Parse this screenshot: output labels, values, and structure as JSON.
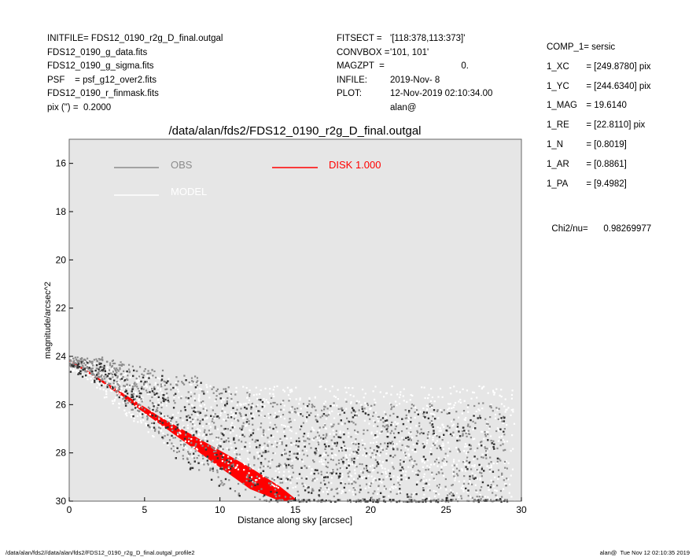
{
  "header_left": [
    {
      "key": "INITFILE= ",
      "value": "FDS12_0190_r2g_D_final.outgal"
    },
    {
      "key": "",
      "value": "FDS12_0190_g_data.fits"
    },
    {
      "key": "",
      "value": "FDS12_0190_g_sigma.fits"
    },
    {
      "key": "PSF    = ",
      "value": "psf_g12_over2.fits"
    },
    {
      "key": "",
      "value": "FDS12_0190_r_finmask.fits"
    },
    {
      "key": "pix (\") =  ",
      "value": "0.2000"
    }
  ],
  "header_mid": [
    {
      "key": "FITSECT = ",
      "value": "'[118:378,113:373]'"
    },
    {
      "key": "CONVBOX = ",
      "value": "'101, 101'"
    },
    {
      "key": "MAGZPT  =",
      "value": "0."
    },
    {
      "key": "INFILE: ",
      "value": "2019-Nov- 8"
    },
    {
      "key": "PLOT: ",
      "value": "12-Nov-2019 02:10:34.00"
    },
    {
      "key": "",
      "value": "alan@"
    }
  ],
  "params": [
    {
      "key": "COMP_1",
      "value": " = sersic"
    },
    {
      "key": "1_XC",
      "value": "  = [249.8780] pix"
    },
    {
      "key": "1_YC",
      "value": "  = [244.6340] pix"
    },
    {
      "key": "1_MAG",
      "value": "  = 19.6140"
    },
    {
      "key": "1_RE",
      "value": "  = [22.8110] pix"
    },
    {
      "key": "1_N",
      "value": "  = [0.8019]"
    },
    {
      "key": "1_AR",
      "value": "  = [0.8861]"
    },
    {
      "key": "1_PA",
      "value": "  = [9.4982]"
    }
  ],
  "chi2": {
    "key": "Chi2/nu=",
    "value": "0.98269977"
  },
  "footer_left": "/data/alan/fds2//data/alan/fds2/FDS12_0190_r2g_D_final.outgal_profile2",
  "footer_right": "alan@  Tue Nov 12 02:10:35 2019",
  "colors": {
    "background": "#e6e6e6",
    "obs": "#8c8c8c",
    "model": "#ffffff",
    "disk": "#ff0000"
  },
  "chart_data": {
    "type": "scatter",
    "title": "/data/alan/fds2/FDS12_0190_r2g_D_final.outgal",
    "xlabel": "Distance along sky [arcsec]",
    "ylabel": "magnitude/arcsec^2",
    "xlim": [
      0,
      30
    ],
    "ylim": [
      30,
      15
    ],
    "y_inverted": true,
    "xticks": [
      0,
      5,
      10,
      15,
      20,
      25,
      30
    ],
    "yticks": [
      16,
      18,
      20,
      22,
      24,
      26,
      28,
      30
    ],
    "grid": false,
    "legend": [
      {
        "label": "OBS",
        "color": "#8c8c8c"
      },
      {
        "label": "MODEL",
        "color": "#ffffff"
      },
      {
        "label": "DISK  1.000",
        "color": "#ff0000"
      }
    ],
    "series": [
      {
        "name": "OBS",
        "kind": "points",
        "x": [
          0.2,
          0.8,
          1.5,
          2.2,
          3.0,
          3.8,
          4.6,
          5.4,
          6.2,
          7.0,
          8.0,
          9.0,
          10.0,
          11.0,
          12.0,
          13.0,
          14.0,
          15.0,
          17.0,
          20.0,
          23.0,
          26.0,
          29.0
        ],
        "y_center": [
          24.2,
          24.3,
          24.4,
          24.5,
          24.8,
          25.1,
          25.4,
          25.7,
          26.0,
          26.3,
          26.6,
          26.9,
          27.2,
          27.5,
          27.8,
          28.0,
          28.2,
          28.3,
          28.3,
          28.4,
          28.4,
          28.4,
          28.4
        ],
        "y_spread": [
          0.2,
          0.3,
          0.4,
          0.5,
          0.7,
          0.9,
          1.1,
          1.3,
          1.5,
          1.7,
          1.9,
          2.0,
          2.1,
          2.2,
          2.3,
          2.4,
          2.5,
          2.5,
          2.5,
          2.5,
          2.5,
          2.5,
          2.5
        ]
      },
      {
        "name": "MODEL",
        "kind": "points",
        "x": [
          0.2,
          1.0,
          2.0,
          3.0,
          4.0,
          5.0,
          6.0,
          8.0,
          10.0,
          12.0,
          15.0,
          20.0,
          25.0,
          29.5
        ],
        "y_center": [
          24.3,
          24.5,
          24.9,
          25.3,
          25.6,
          25.9,
          26.2,
          26.6,
          26.9,
          27.2,
          27.4,
          27.5,
          27.6,
          27.6
        ],
        "y_spread": [
          0.3,
          0.4,
          0.6,
          0.8,
          1.0,
          1.2,
          1.4,
          1.6,
          1.8,
          2.0,
          2.2,
          2.3,
          2.4,
          2.4
        ]
      },
      {
        "name": "DISK  1.000",
        "kind": "band",
        "x": [
          0,
          2,
          4,
          6,
          8,
          10,
          12,
          14,
          15
        ],
        "y_upper": [
          24.1,
          24.9,
          25.7,
          26.5,
          27.2,
          27.9,
          28.6,
          29.4,
          29.9
        ],
        "y_lower": [
          24.2,
          25.0,
          25.9,
          26.8,
          27.7,
          28.6,
          29.5,
          30.0,
          30.0
        ]
      }
    ]
  }
}
